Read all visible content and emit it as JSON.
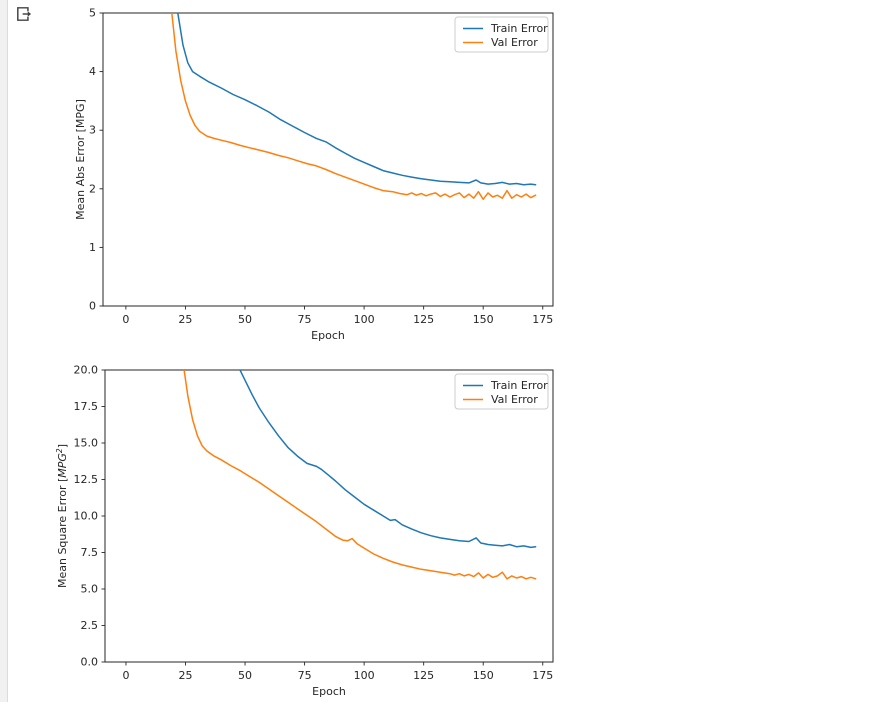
{
  "page": {
    "background": "#ffffff",
    "gutter_color": "#f1f1f1"
  },
  "toolbar": {
    "popout_icon": "pop-out-icon"
  },
  "chart_data": [
    {
      "type": "line",
      "title": "",
      "xlabel": "Epoch",
      "ylabel": "Mean Abs Error [MPG]",
      "ylabel_parts": [
        {
          "t": "Mean Abs Error [MPG]"
        }
      ],
      "xlim": [
        -9.6,
        179.3
      ],
      "ylim": [
        0,
        5
      ],
      "xticks": [
        0,
        25,
        50,
        75,
        100,
        125,
        150,
        175
      ],
      "xtick_labels": [
        "0",
        "25",
        "50",
        "75",
        "100",
        "125",
        "150",
        "175"
      ],
      "yticks": [
        0,
        1,
        2,
        3,
        4,
        5
      ],
      "ytick_labels": [
        "0",
        "1",
        "2",
        "3",
        "4",
        "5"
      ],
      "grid": false,
      "legend": {
        "position": "upper right",
        "entries": [
          {
            "label": "Train Error",
            "color": "#1f77b4"
          },
          {
            "label": "Val Error",
            "color": "#ff7f0e"
          }
        ]
      },
      "series": [
        {
          "name": "Train Error",
          "color": "#1f77b4",
          "x": [
            18,
            20,
            21.8,
            24,
            26,
            28,
            31,
            35,
            40,
            45,
            50,
            55,
            60,
            65,
            70,
            75,
            80,
            82,
            84,
            88,
            92,
            96,
            100,
            104,
            108,
            112,
            116,
            120,
            124,
            128,
            132,
            136,
            140,
            144,
            147,
            149,
            152,
            155,
            158,
            161,
            164,
            167,
            170,
            172
          ],
          "y": [
            8.5,
            6.3,
            5.0,
            4.45,
            4.15,
            4.0,
            3.92,
            3.82,
            3.72,
            3.61,
            3.52,
            3.42,
            3.31,
            3.18,
            3.07,
            2.96,
            2.86,
            2.83,
            2.8,
            2.7,
            2.61,
            2.52,
            2.45,
            2.38,
            2.31,
            2.27,
            2.23,
            2.2,
            2.17,
            2.15,
            2.13,
            2.12,
            2.11,
            2.1,
            2.15,
            2.1,
            2.08,
            2.09,
            2.11,
            2.08,
            2.09,
            2.07,
            2.08,
            2.07
          ]
        },
        {
          "name": "Val Error",
          "color": "#ff7f0e",
          "x": [
            16,
            18,
            19.3,
            21,
            23,
            25,
            27,
            29,
            31,
            34,
            37,
            40,
            44,
            48,
            52,
            56,
            60,
            64,
            68,
            72,
            76,
            80,
            84,
            88,
            92,
            96,
            100,
            104,
            108,
            112,
            115,
            118,
            120,
            122,
            124,
            126,
            128,
            130,
            132,
            134,
            136,
            138,
            140,
            142,
            144,
            146,
            148,
            150,
            152,
            154,
            156,
            158,
            160,
            162,
            164,
            166,
            168,
            170,
            172
          ],
          "y": [
            7.5,
            5.9,
            5.0,
            4.35,
            3.85,
            3.5,
            3.25,
            3.08,
            2.98,
            2.9,
            2.86,
            2.83,
            2.79,
            2.74,
            2.7,
            2.66,
            2.62,
            2.57,
            2.53,
            2.48,
            2.43,
            2.39,
            2.33,
            2.26,
            2.2,
            2.14,
            2.08,
            2.02,
            1.97,
            1.95,
            1.92,
            1.9,
            1.93,
            1.89,
            1.92,
            1.88,
            1.91,
            1.93,
            1.87,
            1.91,
            1.86,
            1.9,
            1.93,
            1.85,
            1.91,
            1.84,
            1.95,
            1.82,
            1.93,
            1.86,
            1.89,
            1.84,
            1.97,
            1.84,
            1.9,
            1.86,
            1.91,
            1.85,
            1.89
          ]
        }
      ]
    },
    {
      "type": "line",
      "title": "",
      "xlabel": "Epoch",
      "ylabel": "Mean Square Error [MPG²]",
      "ylabel_parts": [
        {
          "t": "Mean Square Error ["
        },
        {
          "t": "MPG",
          "italic": true
        },
        {
          "t": "2",
          "italic": true,
          "sup": true
        },
        {
          "t": "]"
        }
      ],
      "xlim": [
        -8.8,
        179.3
      ],
      "ylim": [
        0,
        20
      ],
      "xticks": [
        0,
        25,
        50,
        75,
        100,
        125,
        150,
        175
      ],
      "xtick_labels": [
        "0",
        "25",
        "50",
        "75",
        "100",
        "125",
        "150",
        "175"
      ],
      "yticks": [
        0,
        2.5,
        5,
        7.5,
        10,
        12.5,
        15,
        17.5,
        20
      ],
      "ytick_labels": [
        "0.0",
        "2.5",
        "5.0",
        "7.5",
        "10.0",
        "12.5",
        "15.0",
        "17.5",
        "20.0"
      ],
      "grid": false,
      "legend": {
        "position": "upper right",
        "entries": [
          {
            "label": "Train Error",
            "color": "#1f77b4"
          },
          {
            "label": "Val Error",
            "color": "#ff7f0e"
          }
        ]
      },
      "series": [
        {
          "name": "Train Error",
          "color": "#1f77b4",
          "x": [
            42,
            45,
            47.9,
            50,
            53,
            56,
            60,
            64,
            68,
            72,
            76,
            80,
            82,
            85,
            88,
            92,
            96,
            100,
            104,
            108,
            111,
            113,
            116,
            120,
            124,
            128,
            132,
            136,
            140,
            144,
            147,
            149,
            152,
            155,
            158,
            161,
            164,
            167,
            170,
            172
          ],
          "y": [
            24.5,
            22.0,
            20.0,
            19.3,
            18.3,
            17.4,
            16.4,
            15.5,
            14.7,
            14.1,
            13.6,
            13.4,
            13.2,
            12.8,
            12.4,
            11.8,
            11.3,
            10.8,
            10.4,
            10.0,
            9.7,
            9.75,
            9.4,
            9.1,
            8.85,
            8.65,
            8.5,
            8.4,
            8.3,
            8.25,
            8.5,
            8.15,
            8.05,
            8.0,
            7.95,
            8.05,
            7.9,
            7.95,
            7.85,
            7.9
          ]
        },
        {
          "name": "Val Error",
          "color": "#ff7f0e",
          "x": [
            20,
            22,
            24.4,
            26,
            28,
            30,
            32,
            34,
            37,
            40,
            44,
            48,
            52,
            56,
            60,
            64,
            68,
            72,
            76,
            80,
            84,
            88,
            91,
            93,
            95,
            97,
            100,
            104,
            108,
            112,
            116,
            120,
            124,
            128,
            132,
            136,
            138,
            140,
            142,
            144,
            146,
            148,
            150,
            152,
            154,
            156,
            158,
            160,
            162,
            164,
            166,
            168,
            170,
            172
          ],
          "y": [
            28,
            23.5,
            20.0,
            18.2,
            16.6,
            15.5,
            14.8,
            14.45,
            14.1,
            13.85,
            13.45,
            13.1,
            12.7,
            12.3,
            11.85,
            11.4,
            10.95,
            10.5,
            10.05,
            9.6,
            9.1,
            8.6,
            8.35,
            8.3,
            8.45,
            8.1,
            7.8,
            7.4,
            7.1,
            6.85,
            6.65,
            6.5,
            6.35,
            6.25,
            6.15,
            6.05,
            5.95,
            6.05,
            5.9,
            6.0,
            5.85,
            6.1,
            5.75,
            6.0,
            5.8,
            5.9,
            6.15,
            5.7,
            5.9,
            5.75,
            5.85,
            5.7,
            5.8,
            5.7
          ]
        }
      ]
    }
  ]
}
